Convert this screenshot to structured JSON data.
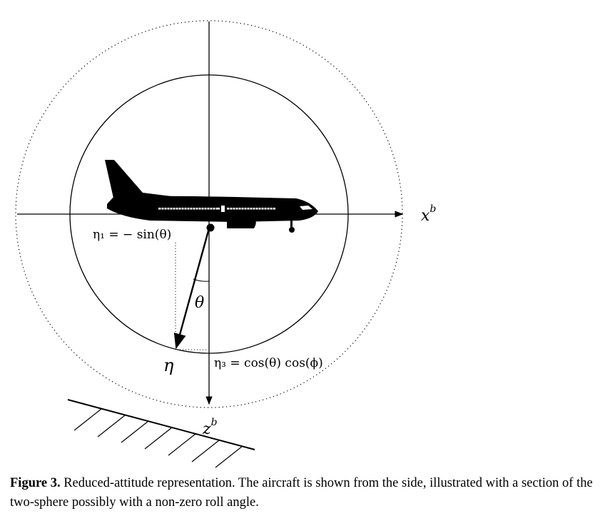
{
  "figure": {
    "labels": {
      "xb": "x",
      "xb_sup": "b",
      "zb": "z",
      "zb_sup": "b",
      "eta": "η",
      "theta": "θ",
      "eta1": "η₁ = − sin(θ)",
      "eta3": "η₃ = cos(θ) cos(ϕ)"
    }
  },
  "caption": {
    "label": "Figure 3.",
    "text": "Reduced-attitude representation. The aircraft is shown from the side, illustrated with a section of the two-sphere possibly with a non-zero roll angle."
  }
}
